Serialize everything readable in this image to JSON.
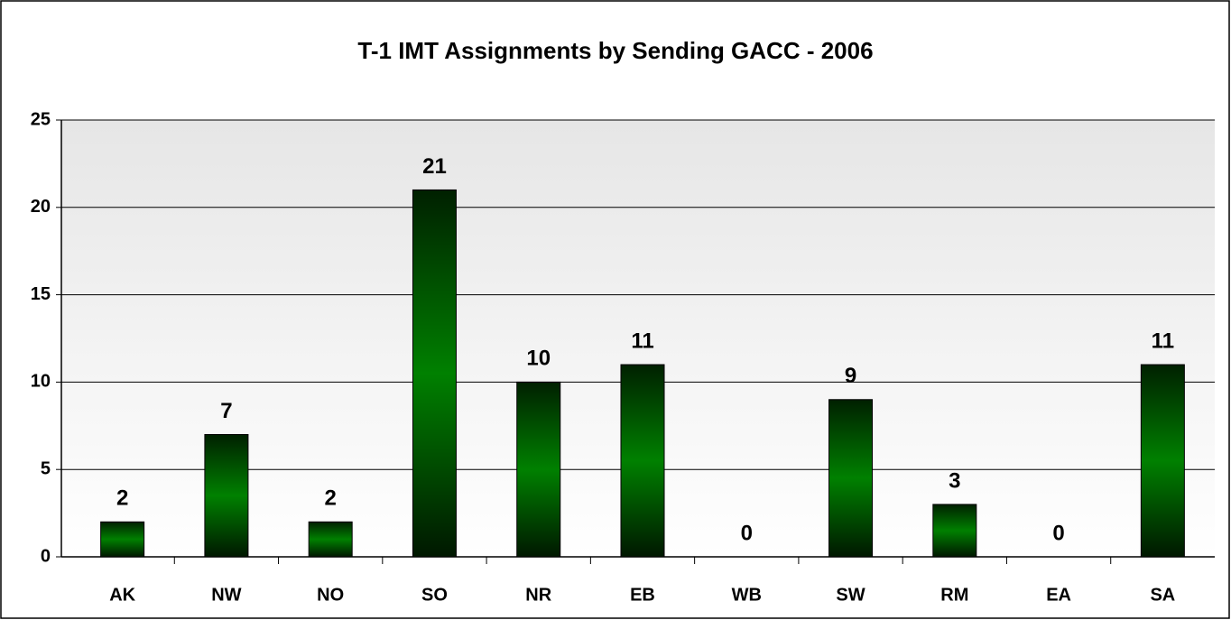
{
  "chart_data": {
    "type": "bar",
    "title": "T-1 IMT Assignments by Sending GACC - 2006",
    "categories": [
      "AK",
      "NW",
      "NO",
      "SO",
      "NR",
      "EB",
      "WB",
      "SW",
      "RM",
      "EA",
      "SA"
    ],
    "values": [
      2,
      7,
      2,
      21,
      10,
      11,
      0,
      9,
      3,
      0,
      11
    ],
    "color": "#008000",
    "ylim": [
      0,
      25
    ],
    "yticks": [
      0,
      5,
      10,
      15,
      20,
      25
    ],
    "grid": true
  }
}
